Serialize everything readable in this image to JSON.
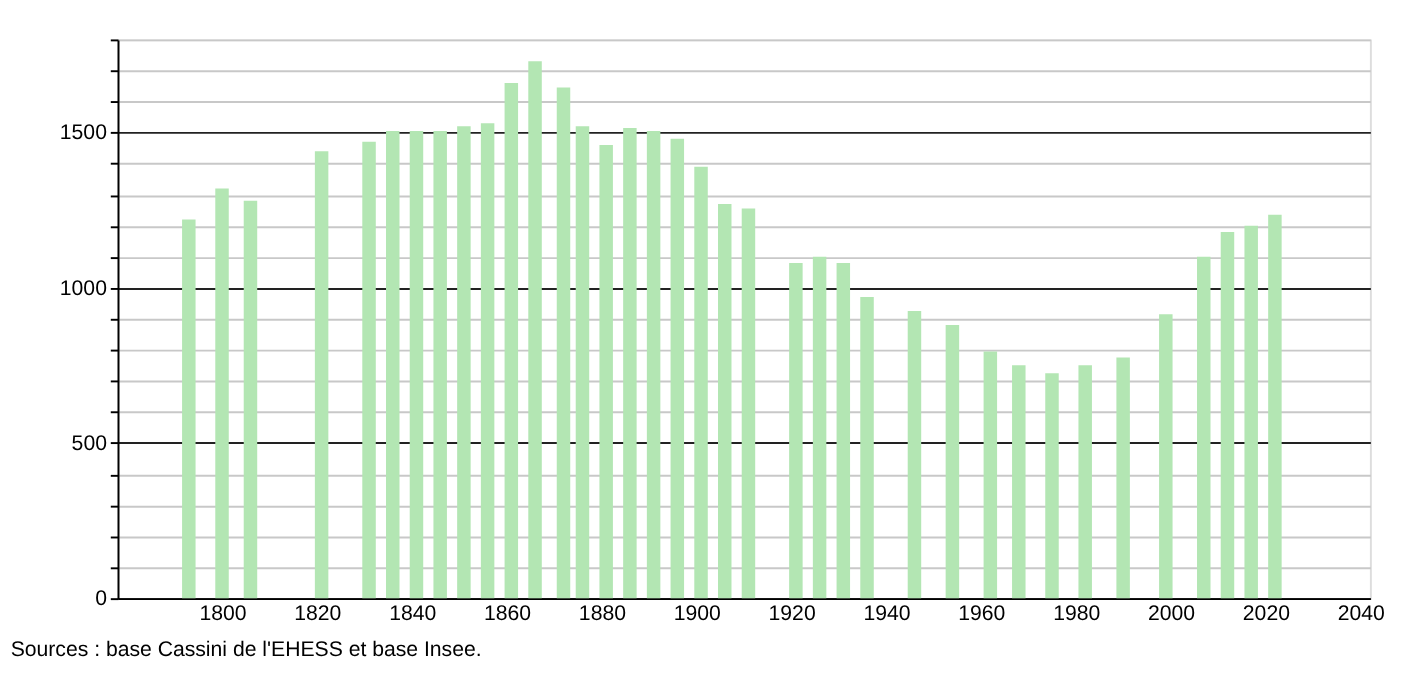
{
  "chart_data": {
    "type": "bar",
    "x": [
      1793,
      1800,
      1806,
      1821,
      1831,
      1836,
      1841,
      1846,
      1851,
      1856,
      1861,
      1866,
      1872,
      1876,
      1881,
      1886,
      1891,
      1896,
      1901,
      1906,
      1911,
      1921,
      1926,
      1931,
      1936,
      1946,
      1954,
      1962,
      1968,
      1975,
      1982,
      1990,
      1999,
      2007,
      2012,
      2017,
      2022
    ],
    "values": [
      1220,
      1320,
      1280,
      1440,
      1470,
      1505,
      1505,
      1505,
      1520,
      1530,
      1660,
      1730,
      1645,
      1520,
      1460,
      1515,
      1505,
      1480,
      1390,
      1270,
      1255,
      1080,
      1100,
      1080,
      970,
      925,
      880,
      795,
      750,
      725,
      750,
      775,
      915,
      1100,
      1180,
      1200,
      1235
    ],
    "color": "#b3e6b3",
    "xlim": [
      1780,
      2040
    ],
    "xticks": [
      1800,
      1820,
      1840,
      1860,
      1880,
      1900,
      1920,
      1940,
      1960,
      1980,
      2000,
      2020,
      2040
    ],
    "ylim": [
      0,
      1800
    ],
    "yticks": [
      0,
      {
        "value": 100,
        "label": null
      },
      {
        "value": 200,
        "label": null
      },
      {
        "value": 300,
        "label": null
      },
      {
        "value": 400,
        "label": null
      },
      500,
      {
        "value": 600,
        "label": null
      },
      {
        "value": 700,
        "label": null
      },
      {
        "value": 800,
        "label": null
      },
      {
        "value": 900,
        "label": null
      },
      1000,
      {
        "value": 1100,
        "label": null
      },
      {
        "value": 1200,
        "label": null
      },
      {
        "value": 1300,
        "label": null
      },
      {
        "value": 1400,
        "label": null
      },
      1500,
      {
        "value": 1600,
        "label": null
      },
      {
        "value": 1700,
        "label": null
      },
      {
        "value": 1800,
        "label": null
      }
    ],
    "grid": "y",
    "annotations": [
      "Sources : base Cassini de l'EHESS et base Insee."
    ]
  }
}
